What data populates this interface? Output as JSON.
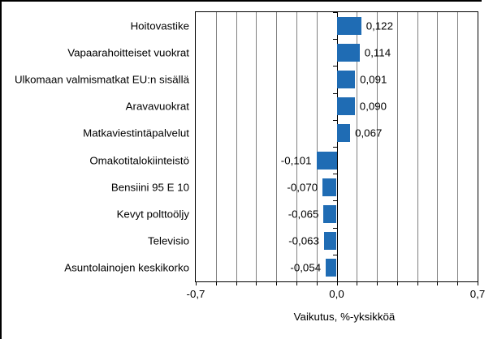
{
  "chart_data": {
    "type": "bar",
    "orientation": "horizontal",
    "title": "",
    "xlabel": "Vaikutus, %-yksikköä",
    "categories": [
      "Hoitovastike",
      "Vapaarahoitteiset vuokrat",
      "Ulkomaan valmismatkat EU:n sisällä",
      "Aravavuokrat",
      "Matkaviestintäpalvelut",
      "Omakotitalokiinteistö",
      "Bensiini 95 E 10",
      "Kevyt polttoöljy",
      "Televisio",
      "Asuntolainojen keskikorko"
    ],
    "values": [
      0.122,
      0.114,
      0.091,
      0.09,
      0.067,
      -0.101,
      -0.07,
      -0.065,
      -0.063,
      -0.054
    ],
    "value_labels": [
      "0,122",
      "0,114",
      "0,091",
      "0,090",
      "0,067",
      "-0,101",
      "-0,070",
      "-0,065",
      "-0,063",
      "-0,054"
    ],
    "xlim": [
      -0.7,
      0.7
    ],
    "x_ticks": [
      -0.7,
      0.0,
      0.7
    ],
    "x_tick_labels": [
      "-0,7",
      "0,0",
      "0,7"
    ],
    "gridline_interval": 0.1,
    "grid": true,
    "legend": false,
    "bar_color": "#1f6cb4",
    "gridline_color": "#808080",
    "axis_color": "#000000",
    "background": "#ffffff"
  }
}
